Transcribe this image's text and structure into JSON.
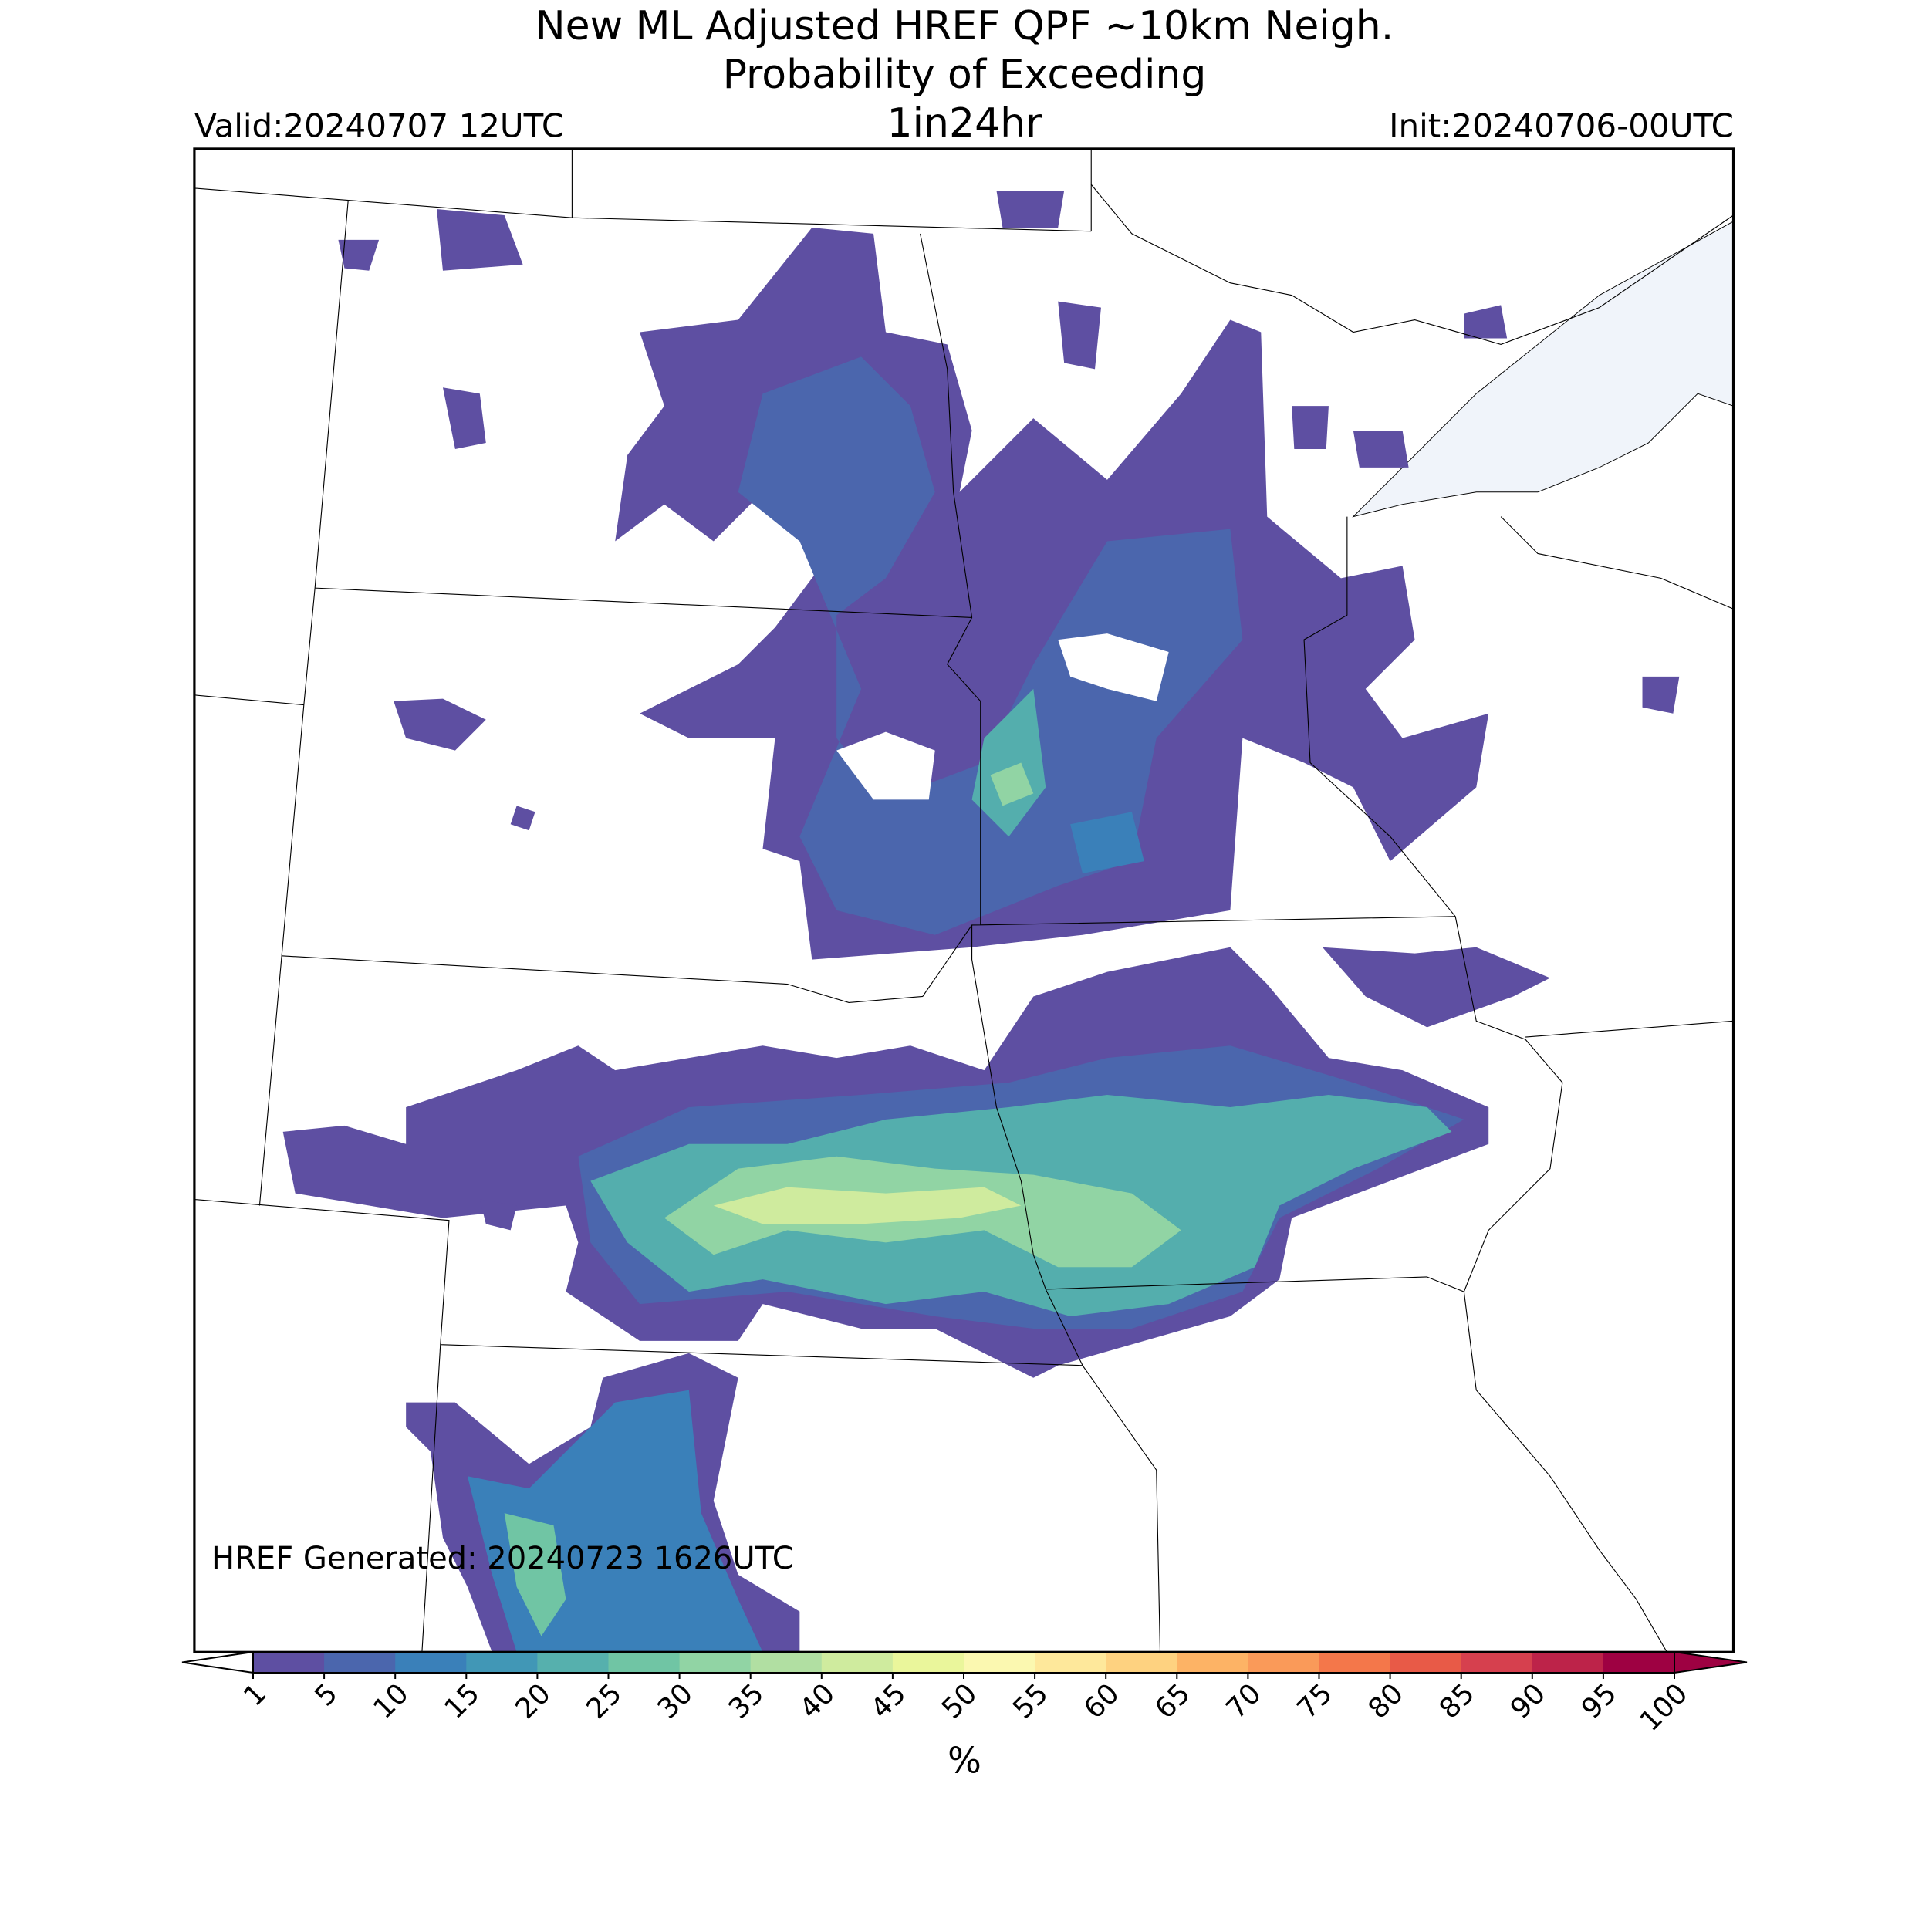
{
  "header": {
    "title_lines": [
      "New ML Adjusted HREF QPF ~10km Neigh.",
      "Probability of Exceeding"
    ],
    "subtitle": "1in24hr",
    "valid": "Valid:20240707 12UTC",
    "init": "Init:20240706-00UTC"
  },
  "annotation": "HREF Generated: 20240723 1626UTC",
  "colorbar": {
    "label": "%",
    "levels": [
      1,
      5,
      10,
      15,
      20,
      25,
      30,
      35,
      40,
      45,
      50,
      55,
      60,
      65,
      70,
      75,
      80,
      85,
      90,
      95,
      100
    ],
    "colors": [
      "#5e4fa2",
      "#4b66ad",
      "#3a80b9",
      "#4197b6",
      "#56b0ad",
      "#70c5a4",
      "#91d4a4",
      "#b1dfa2",
      "#cfeb9e",
      "#eaf69b",
      "#fbf8b0",
      "#fee89b",
      "#fed280",
      "#fdb365",
      "#fa9a59",
      "#f4774a",
      "#e85a47",
      "#d6404e",
      "#bd2349",
      "#9e0142"
    ],
    "under_color": "#ffffff",
    "over_color": "#9e0142"
  }
}
